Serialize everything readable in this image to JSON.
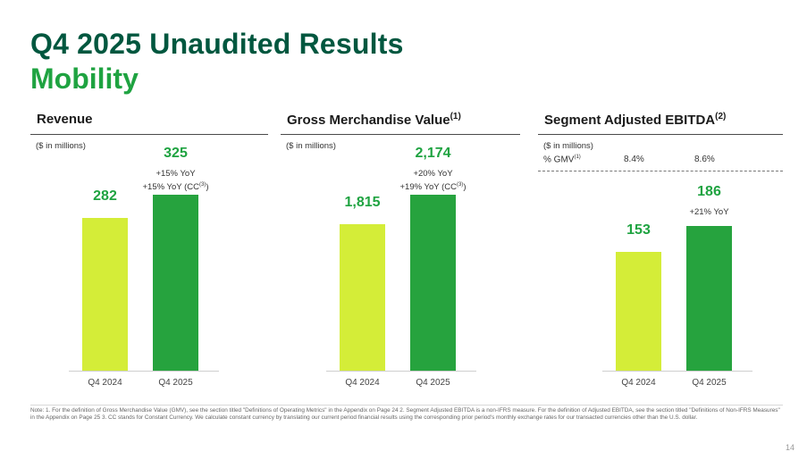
{
  "header": {
    "title_line1": "Q4 2025 Unaudited Results",
    "title_line2": "Mobility"
  },
  "colors": {
    "dark_green": "#00573f",
    "accent_green": "#1fa341",
    "prior_bar": "#d4ed38",
    "current_bar": "#26a33e"
  },
  "panels": [
    {
      "title": "Revenue",
      "title_sup": "",
      "units": "($ in millions)",
      "prior_value_label": "282",
      "current_value_label": "325",
      "yoy_line1": "+15% YoY",
      "yoy_line2_pre": "+15% YoY (CC",
      "yoy_line2_sup": "(3)",
      "yoy_line2_post": ")",
      "xlabel_prior": "Q4 2024",
      "xlabel_current": "Q4 2025"
    },
    {
      "title": "Gross Merchandise Value",
      "title_sup": "(1)",
      "units": "($ in millions)",
      "prior_value_label": "1,815",
      "current_value_label": "2,174",
      "yoy_line1": "+20% YoY",
      "yoy_line2_pre": "+19% YoY (CC",
      "yoy_line2_sup": "(3)",
      "yoy_line2_post": ")",
      "xlabel_prior": "Q4 2024",
      "xlabel_current": "Q4 2025"
    },
    {
      "title": "Segment Adjusted EBITDA",
      "title_sup": "(2)",
      "units": "($ in millions)",
      "pct_label": "% GMV",
      "pct_label_sup": "(1)",
      "pct_prior": "8.4%",
      "pct_current": "8.6%",
      "prior_value_label": "153",
      "current_value_label": "186",
      "yoy_line1": "+21% YoY",
      "xlabel_prior": "Q4 2024",
      "xlabel_current": "Q4 2025"
    }
  ],
  "chart_data": [
    {
      "type": "bar",
      "title": "Revenue",
      "ylabel": "($ in millions)",
      "categories": [
        "Q4 2024",
        "Q4 2025"
      ],
      "values": [
        282,
        325
      ]
    },
    {
      "type": "bar",
      "title": "Gross Merchandise Value(1)",
      "ylabel": "($ in millions)",
      "categories": [
        "Q4 2024",
        "Q4 2025"
      ],
      "values": [
        1815,
        2174
      ]
    },
    {
      "type": "bar",
      "title": "Segment Adjusted EBITDA(2)",
      "ylabel": "($ in millions)",
      "categories": [
        "Q4 2024",
        "Q4 2025"
      ],
      "values": [
        153,
        186
      ]
    }
  ],
  "footnote": "Note: 1. For the definition of Gross Merchandise Value (GMV), see the section titled \"Definitions of Operating Metrics\" in the Appendix on Page 24 2. Segment Adjusted EBITDA is a non-IFRS measure. For the definition of Adjusted EBITDA, see the section titled \"Definitions of Non-IFRS Measures\" in the Appendix on Page 25 3. CC stands for Constant Currency. We calculate constant currency by translating our current period financial results using the corresponding prior period's monthly exchange rates for our transacted currencies other than the U.S. dollar.",
  "page_number": "14"
}
